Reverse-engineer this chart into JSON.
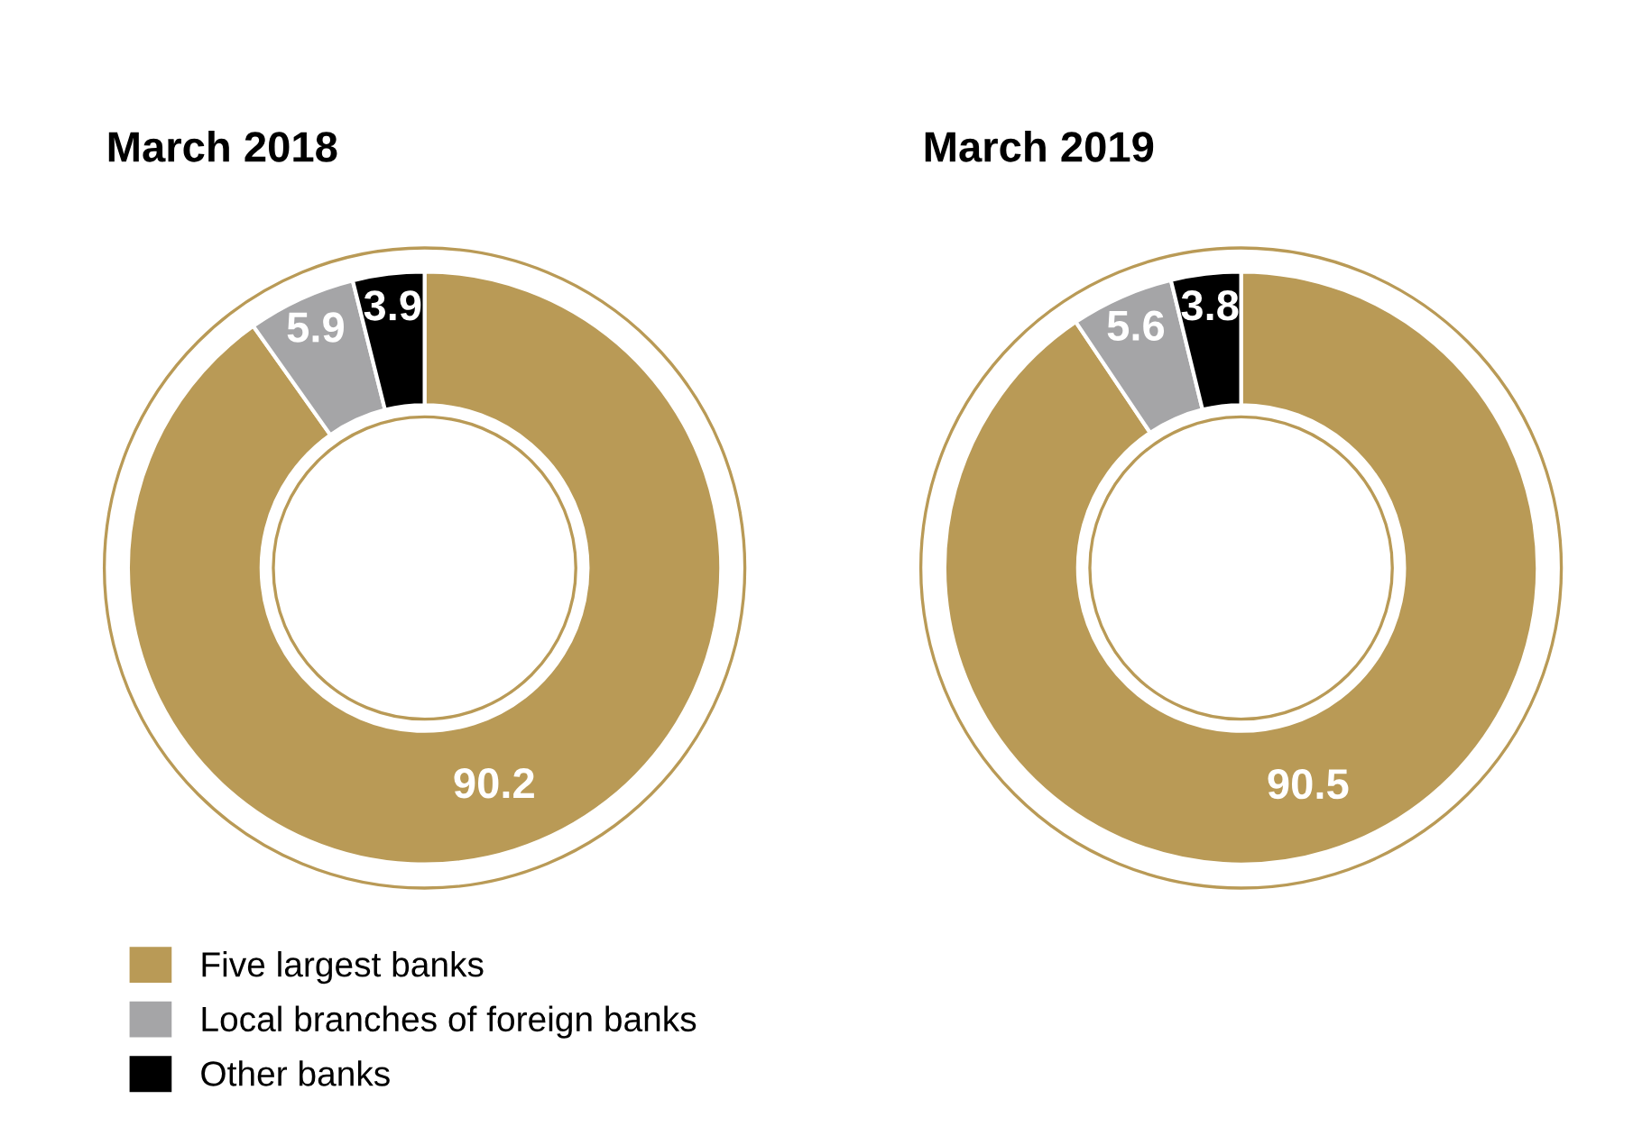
{
  "chart_data": [
    {
      "type": "donut",
      "title": "March 2018",
      "categories": [
        "Five largest banks",
        "Local branches of foreign banks",
        "Other banks"
      ],
      "values": [
        90.2,
        5.9,
        3.9
      ],
      "colors": [
        "#b99a56",
        "#a5a5a7",
        "#000000"
      ],
      "data_labels": true,
      "legend": "bottom"
    },
    {
      "type": "donut",
      "title": "March 2019",
      "categories": [
        null,
        null,
        null
      ],
      "values": [
        90.5,
        5.6,
        3.8
      ],
      "colors": [
        "#b99a56",
        "#a5a5a7",
        "#000000"
      ],
      "data_labels": true,
      "legend": false
    }
  ]
}
